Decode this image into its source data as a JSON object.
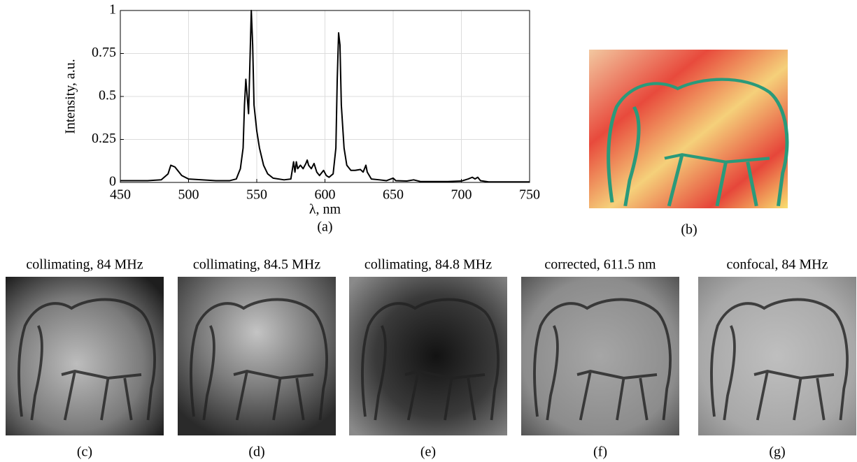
{
  "chart_data": {
    "type": "line",
    "xlabel": "λ, nm",
    "ylabel": "Intensity, a.u.",
    "panel_label": "(a)",
    "x": [
      450,
      470,
      480,
      485,
      487,
      490,
      495,
      500,
      520,
      530,
      535,
      538,
      540,
      541,
      542,
      543,
      544,
      545,
      546,
      547,
      548,
      550,
      552,
      555,
      558,
      562,
      570,
      575,
      577,
      578,
      579,
      580,
      582,
      584,
      586,
      587,
      588,
      590,
      592,
      594,
      596,
      599,
      601,
      603,
      606,
      608,
      609,
      610,
      611,
      612,
      614,
      616,
      619,
      622,
      626,
      628,
      630,
      631,
      634,
      640,
      645,
      650,
      652,
      660,
      665,
      670,
      690,
      700,
      705,
      708,
      710,
      712,
      714,
      720,
      750
    ],
    "values": [
      0.01,
      0.01,
      0.015,
      0.05,
      0.1,
      0.09,
      0.04,
      0.02,
      0.01,
      0.01,
      0.02,
      0.08,
      0.2,
      0.45,
      0.6,
      0.5,
      0.4,
      0.7,
      1.0,
      0.8,
      0.45,
      0.3,
      0.2,
      0.1,
      0.05,
      0.025,
      0.015,
      0.02,
      0.12,
      0.06,
      0.12,
      0.08,
      0.1,
      0.08,
      0.11,
      0.13,
      0.1,
      0.08,
      0.11,
      0.06,
      0.04,
      0.07,
      0.04,
      0.03,
      0.05,
      0.2,
      0.6,
      0.87,
      0.8,
      0.45,
      0.2,
      0.1,
      0.07,
      0.07,
      0.075,
      0.06,
      0.1,
      0.06,
      0.02,
      0.015,
      0.01,
      0.025,
      0.01,
      0.008,
      0.015,
      0.005,
      0.005,
      0.008,
      0.02,
      0.03,
      0.02,
      0.03,
      0.01,
      0.003,
      0.003
    ],
    "color": "#000000",
    "xlim": [
      450,
      750
    ],
    "ylim": [
      0,
      1
    ],
    "xticks": [
      450,
      500,
      550,
      600,
      650,
      700,
      750
    ],
    "yticks": [
      0,
      0.25,
      0.5,
      0.75,
      1
    ],
    "grid": true
  },
  "panels": [
    {
      "label": "(b)"
    },
    {
      "title": "collimating, 84 MHz",
      "label": "(c)"
    },
    {
      "title": "collimating, 84.5 MHz",
      "label": "(d)"
    },
    {
      "title": "collimating, 84.8 MHz",
      "label": "(e)"
    },
    {
      "title": "corrected, 611.5 nm",
      "label": "(f)"
    },
    {
      "title": "confocal, 84 MHz",
      "label": "(g)"
    }
  ]
}
